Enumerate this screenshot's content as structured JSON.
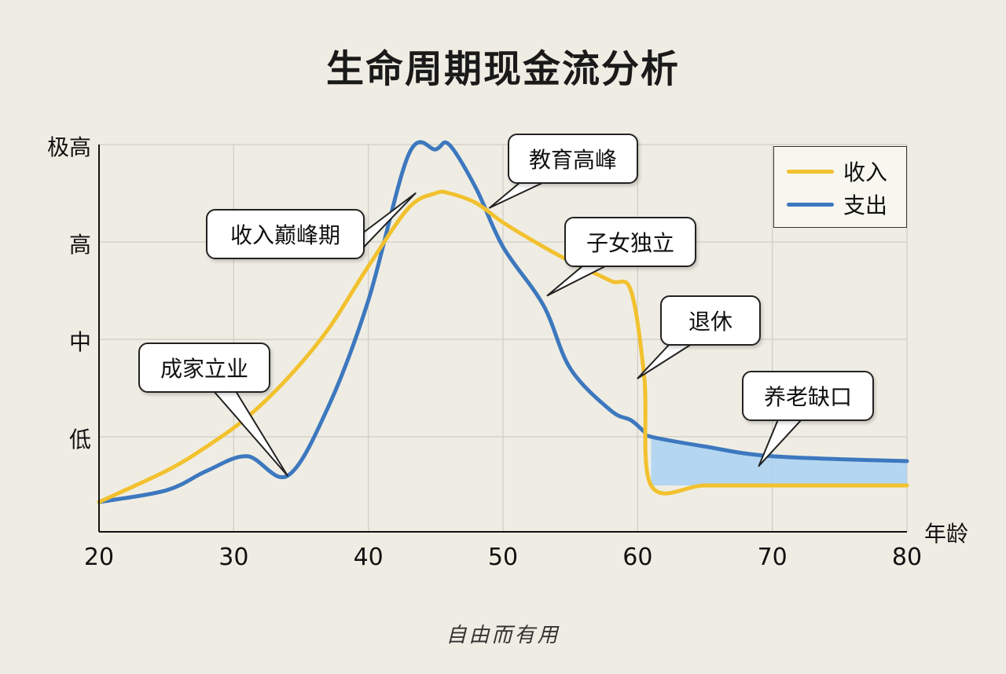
{
  "title": "生命周期现金流分析",
  "watermark": "自由而有用",
  "chart_data": {
    "type": "line",
    "x": [
      20,
      25,
      28,
      31,
      34,
      37,
      40,
      43,
      45,
      46,
      48,
      50,
      53,
      55,
      58,
      59.5,
      60.5,
      61,
      65,
      70,
      80
    ],
    "series": [
      {
        "name": "收入",
        "color": "#f2c12e",
        "values": [
          0.33,
          0.65,
          0.9,
          1.2,
          1.6,
          2.1,
          2.75,
          3.35,
          3.5,
          3.5,
          3.4,
          3.2,
          2.95,
          2.8,
          2.6,
          2.5,
          1.6,
          0.5,
          0.5,
          0.5,
          0.5
        ]
      },
      {
        "name": "支出",
        "color": "#3d78bf",
        "values": [
          0.33,
          0.45,
          0.65,
          0.8,
          0.6,
          1.3,
          2.4,
          3.9,
          3.95,
          4.0,
          3.55,
          2.95,
          2.35,
          1.7,
          1.27,
          1.17,
          1.05,
          1.0,
          0.9,
          0.8,
          0.75
        ]
      }
    ],
    "shaded_region": {
      "x_from": 61,
      "x_to": 80,
      "color": "#a9d1f2",
      "label": "养老缺口"
    },
    "xlim": [
      20,
      80
    ],
    "ylim": [
      0,
      4
    ],
    "x_ticks": [
      20,
      30,
      40,
      50,
      60,
      70,
      80
    ],
    "y_tick_labels": [
      "低",
      "中",
      "高",
      "极高"
    ],
    "y_tick_values": [
      1,
      2,
      3,
      4
    ],
    "xlabel": "年龄",
    "grid": true,
    "legend_position": "top-right",
    "annotations": [
      {
        "text": "成家立业",
        "x": 34,
        "y": 0.6
      },
      {
        "text": "收入巅峰期",
        "x": 43.5,
        "y": 3.5
      },
      {
        "text": "教育高峰",
        "x": 49,
        "y": 3.35
      },
      {
        "text": "子女独立",
        "x": 53.3,
        "y": 2.45
      },
      {
        "text": "退休",
        "x": 60,
        "y": 1.6
      },
      {
        "text": "养老缺口",
        "x": 69,
        "y": 0.7
      }
    ]
  }
}
